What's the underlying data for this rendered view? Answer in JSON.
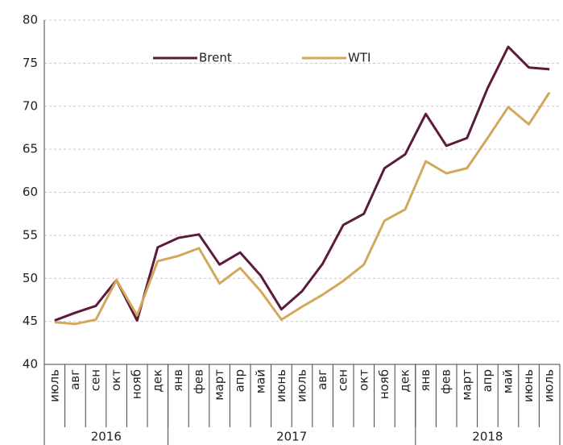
{
  "chart_data": {
    "type": "line",
    "categories": [
      "июль",
      "авг",
      "сен",
      "окт",
      "нояб",
      "дек",
      "янв",
      "фев",
      "март",
      "апр",
      "май",
      "июнь",
      "июль",
      "авг",
      "сен",
      "окт",
      "нояб",
      "дек",
      "янв",
      "фев",
      "март",
      "апр",
      "май",
      "июнь",
      "июль"
    ],
    "years": [
      {
        "label": "2016",
        "span": 6
      },
      {
        "label": "2017",
        "span": 12
      },
      {
        "label": "2018",
        "span": 7
      }
    ],
    "series": [
      {
        "name": "Brent",
        "color": "#5c1a3d",
        "values": [
          45.1,
          46.0,
          46.8,
          49.8,
          45.1,
          53.6,
          54.7,
          55.1,
          51.6,
          53.0,
          50.3,
          46.4,
          48.5,
          51.7,
          56.2,
          57.5,
          62.8,
          64.4,
          69.1,
          65.4,
          66.3,
          72.1,
          76.9,
          74.5,
          74.3
        ]
      },
      {
        "name": "WTI",
        "color": "#d4a85c",
        "values": [
          44.9,
          44.7,
          45.2,
          49.8,
          45.7,
          52.0,
          52.6,
          53.5,
          49.4,
          51.2,
          48.5,
          45.2,
          46.7,
          48.1,
          49.7,
          51.6,
          56.7,
          58.0,
          63.6,
          62.2,
          62.8,
          66.3,
          69.9,
          67.9,
          71.6
        ]
      }
    ],
    "ylim": [
      40,
      80
    ],
    "yticks": [
      40,
      45,
      50,
      55,
      60,
      65,
      70,
      75,
      80
    ],
    "grid": true
  }
}
